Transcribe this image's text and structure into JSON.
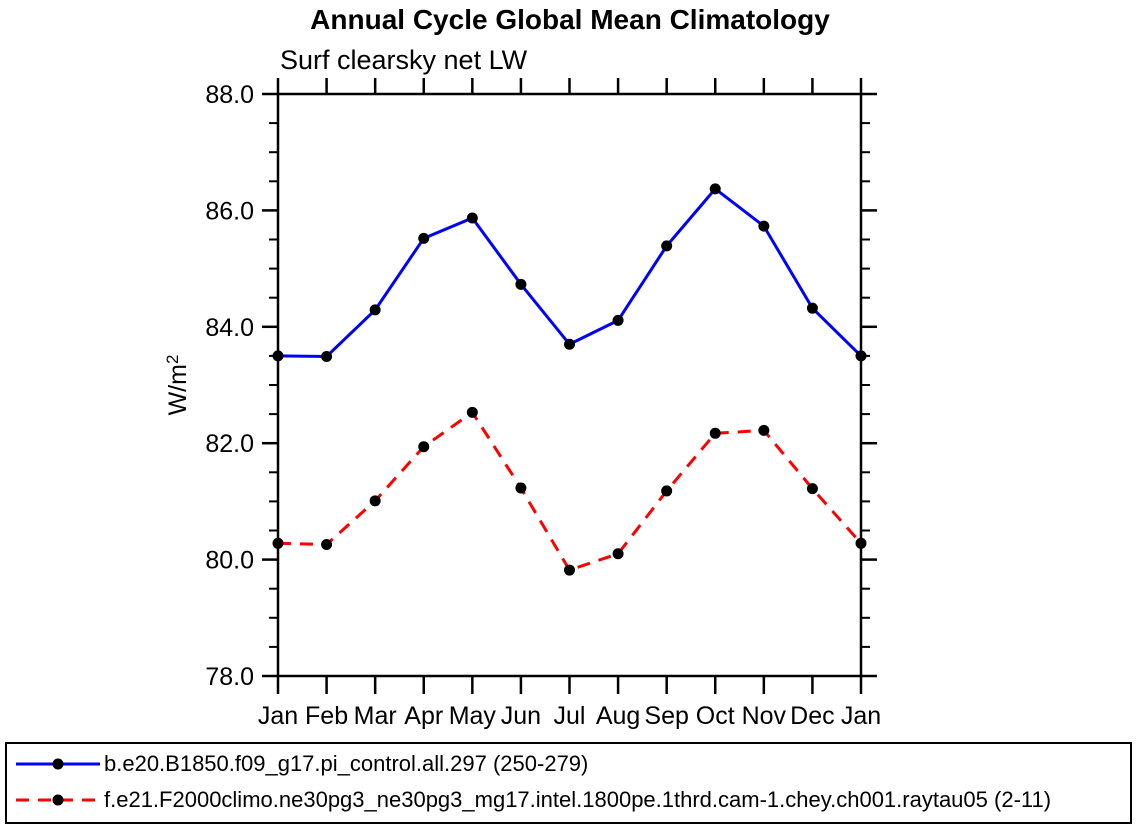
{
  "page": {
    "background_color": "#ffffff",
    "axis_color": "#000000"
  },
  "chart_data": {
    "type": "line",
    "title": "Annual Cycle Global Mean Climatology",
    "subtitle": "Surf clearsky net LW",
    "ylabel_base": "W/m",
    "ylabel_exponent": "2",
    "categories": [
      "Jan",
      "Feb",
      "Mar",
      "Apr",
      "May",
      "Jun",
      "Jul",
      "Aug",
      "Sep",
      "Oct",
      "Nov",
      "Dec",
      "Jan"
    ],
    "ylim": [
      78.0,
      88.0
    ],
    "ytick_major_step": 2.0,
    "ytick_minor_step": 0.5,
    "grid": false,
    "legend_position": "bottom-box",
    "series": [
      {
        "label": "b.e20.B1850.f09_g17.pi_control.all.297 (250-279)",
        "line_color": "#0000ff",
        "line_style": "solid",
        "marker": "filled-circle",
        "marker_color": "#000000",
        "values": [
          83.5,
          83.49,
          84.29,
          85.52,
          85.87,
          84.73,
          83.7,
          84.11,
          85.39,
          86.37,
          85.73,
          84.32,
          83.5
        ]
      },
      {
        "label": "f.e21.F2000climo.ne30pg3_ne30pg3_mg17.intel.1800pe.1thrd.cam-1.chey.ch001.raytau05 (2-11)",
        "line_color": "#ff0000",
        "line_style": "dashed",
        "marker": "filled-circle",
        "marker_color": "#000000",
        "values": [
          80.28,
          80.26,
          81.01,
          81.94,
          82.53,
          81.23,
          79.82,
          80.1,
          81.18,
          82.17,
          82.22,
          81.22,
          80.28
        ]
      }
    ]
  }
}
